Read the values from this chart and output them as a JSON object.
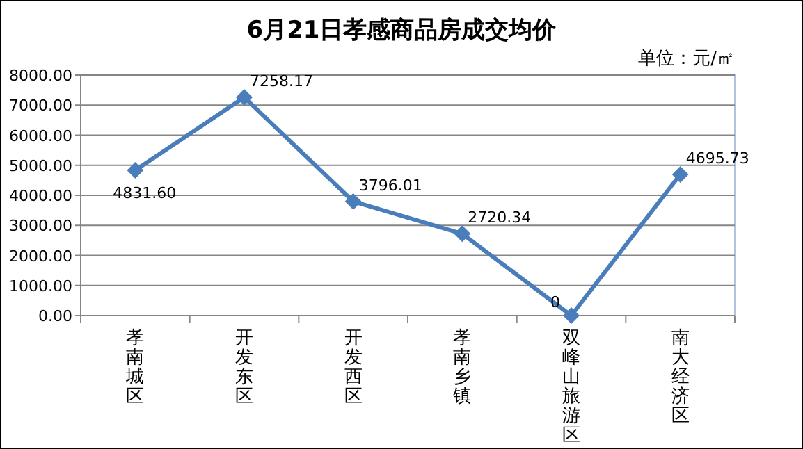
{
  "chart_data": {
    "type": "line",
    "title": "6月21日孝感商品房成交均价",
    "annotations": [
      "单位：元/㎡"
    ],
    "categories": [
      "孝南城区",
      "开发东区",
      "开发西区",
      "孝南乡镇",
      "双峰山旅游区",
      "南大经济区"
    ],
    "series": [
      {
        "color": "#4a7ebb",
        "values": [
          4831.6,
          7258.17,
          3796.01,
          2720.34,
          0,
          4695.73
        ],
        "value_labels": [
          "4831.60",
          "7258.17",
          "3796.01",
          "2720.34",
          "0",
          "4695.73"
        ]
      }
    ],
    "ylim": [
      0,
      8000
    ],
    "yticks": [
      {
        "value": 0,
        "label": "0.00"
      },
      {
        "value": 1000,
        "label": "1000.00"
      },
      {
        "value": 2000,
        "label": "2000.00"
      },
      {
        "value": 3000,
        "label": "3000.00"
      },
      {
        "value": 4000,
        "label": "4000.00"
      },
      {
        "value": 5000,
        "label": "5000.00"
      },
      {
        "value": 6000,
        "label": "6000.00"
      },
      {
        "value": 7000,
        "label": "7000.00"
      },
      {
        "value": 8000,
        "label": "8000.00"
      }
    ],
    "grid": "y",
    "marker": "diamond",
    "line_style": "solid"
  }
}
